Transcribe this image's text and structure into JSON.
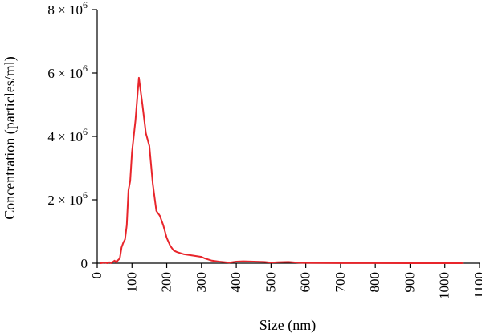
{
  "chart_data": {
    "type": "line",
    "title": "",
    "xlabel": "Size (nm)",
    "ylabel": "Concentration (particles/ml)",
    "xlim": [
      0,
      1100
    ],
    "ylim": [
      0,
      8000000
    ],
    "grid": false,
    "legend": "none",
    "x_ticks": [
      {
        "value": 0,
        "label": "0"
      },
      {
        "value": 100,
        "label": "100"
      },
      {
        "value": 200,
        "label": "200"
      },
      {
        "value": 300,
        "label": "300"
      },
      {
        "value": 400,
        "label": "400"
      },
      {
        "value": 500,
        "label": "500"
      },
      {
        "value": 600,
        "label": "600"
      },
      {
        "value": 700,
        "label": "700"
      },
      {
        "value": 800,
        "label": "800"
      },
      {
        "value": 900,
        "label": "900"
      },
      {
        "value": 1000,
        "label": "1000"
      },
      {
        "value": 1100,
        "label": "1100"
      }
    ],
    "y_ticks": [
      {
        "value": 0,
        "label": "0",
        "mantissa": "",
        "exponent": ""
      },
      {
        "value": 2000000,
        "label": "",
        "mantissa": "2 × 10",
        "exponent": "6"
      },
      {
        "value": 4000000,
        "label": "",
        "mantissa": "4 × 10",
        "exponent": "6"
      },
      {
        "value": 6000000,
        "label": "",
        "mantissa": "6 × 10",
        "exponent": "6"
      },
      {
        "value": 8000000,
        "label": "",
        "mantissa": "8 × 10",
        "exponent": "6"
      }
    ],
    "series": [
      {
        "color": "#e8252b",
        "x": [
          10,
          20,
          30,
          35,
          40,
          45,
          50,
          55,
          60,
          65,
          70,
          75,
          80,
          85,
          90,
          95,
          100,
          110,
          120,
          130,
          140,
          150,
          160,
          170,
          180,
          190,
          200,
          210,
          220,
          230,
          250,
          270,
          300,
          310,
          330,
          350,
          380,
          400,
          420,
          450,
          480,
          500,
          520,
          550,
          580,
          600,
          650,
          700,
          800,
          900,
          1000,
          1050
        ],
        "y": [
          0,
          20000,
          0,
          30000,
          0,
          40000,
          80000,
          20000,
          100000,
          150000,
          500000,
          650000,
          750000,
          1200000,
          2300000,
          2600000,
          3500000,
          4500000,
          5850000,
          5000000,
          4100000,
          3700000,
          2500000,
          1650000,
          1500000,
          1200000,
          800000,
          550000,
          400000,
          350000,
          280000,
          250000,
          200000,
          150000,
          80000,
          50000,
          20000,
          50000,
          60000,
          50000,
          40000,
          20000,
          30000,
          40000,
          15000,
          10000,
          5000,
          3000,
          2000,
          1000,
          500,
          0
        ]
      }
    ]
  }
}
